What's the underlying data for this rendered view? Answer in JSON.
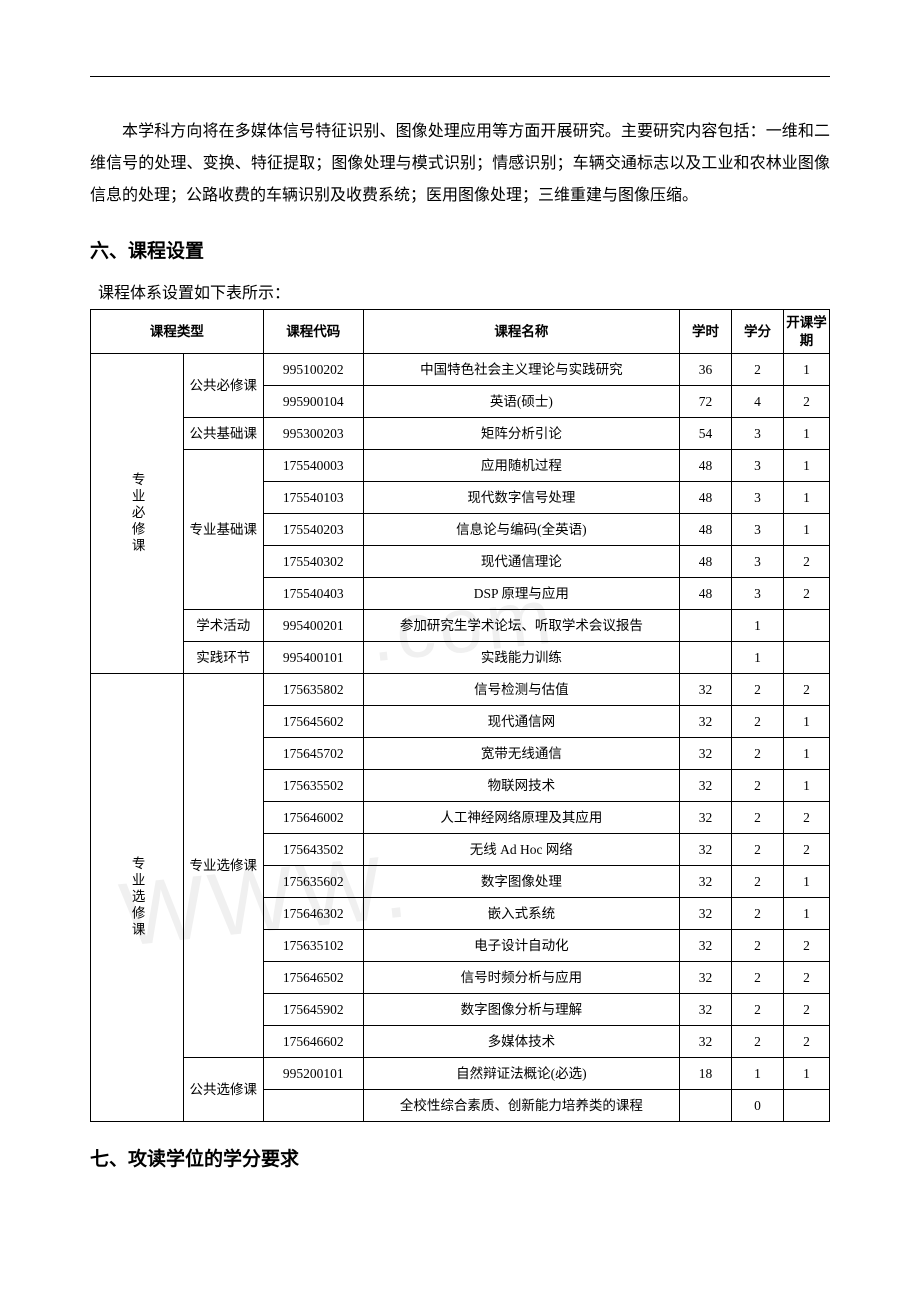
{
  "intro_paragraph": "本学科方向将在多媒体信号特征识别、图像处理应用等方面开展研究。主要研究内容包括：一维和二维信号的处理、变换、特征提取；图像处理与模式识别；情感识别；车辆交通标志以及工业和农林业图像信息的处理；公路收费的车辆识别及收费系统；医用图像处理；三维重建与图像压缩。",
  "section6_title": "六、课程设置",
  "table_intro": "课程体系设置如下表所示：",
  "headers": {
    "type": "课程类型",
    "code": "课程代码",
    "name": "课程名称",
    "hours": "学时",
    "credits": "学分",
    "term": "开课学期"
  },
  "group1_label": "专业必修课",
  "group2_label": "专业选修课",
  "cat_public_required": "公共必修课",
  "cat_public_basic": "公共基础课",
  "cat_major_basic": "专业基础课",
  "cat_academic": "学术活动",
  "cat_practice": "实践环节",
  "cat_major_elective": "专业选修课",
  "cat_public_elective": "公共选修课",
  "rows": {
    "r1": {
      "code": "995100202",
      "name": "中国特色社会主义理论与实践研究",
      "hours": "36",
      "credits": "2",
      "term": "1"
    },
    "r2": {
      "code": "995900104",
      "name": "英语(硕士)",
      "hours": "72",
      "credits": "4",
      "term": "2"
    },
    "r3": {
      "code": "995300203",
      "name": "矩阵分析引论",
      "hours": "54",
      "credits": "3",
      "term": "1"
    },
    "r4": {
      "code": "175540003",
      "name": "应用随机过程",
      "hours": "48",
      "credits": "3",
      "term": "1"
    },
    "r5": {
      "code": "175540103",
      "name": "现代数字信号处理",
      "hours": "48",
      "credits": "3",
      "term": "1"
    },
    "r6": {
      "code": "175540203",
      "name": "信息论与编码(全英语)",
      "hours": "48",
      "credits": "3",
      "term": "1"
    },
    "r7": {
      "code": "175540302",
      "name": "现代通信理论",
      "hours": "48",
      "credits": "3",
      "term": "2"
    },
    "r8": {
      "code": "175540403",
      "name": "DSP 原理与应用",
      "hours": "48",
      "credits": "3",
      "term": "2"
    },
    "r9": {
      "code": "995400201",
      "name": "参加研究生学术论坛、听取学术会议报告",
      "hours": "",
      "credits": "1",
      "term": ""
    },
    "r10": {
      "code": "995400101",
      "name": "实践能力训练",
      "hours": "",
      "credits": "1",
      "term": ""
    },
    "r11": {
      "code": "175635802",
      "name": "信号检测与估值",
      "hours": "32",
      "credits": "2",
      "term": "2"
    },
    "r12": {
      "code": "175645602",
      "name": "现代通信网",
      "hours": "32",
      "credits": "2",
      "term": "1"
    },
    "r13": {
      "code": "175645702",
      "name": "宽带无线通信",
      "hours": "32",
      "credits": "2",
      "term": "1"
    },
    "r14": {
      "code": "175635502",
      "name": "物联网技术",
      "hours": "32",
      "credits": "2",
      "term": "1"
    },
    "r15": {
      "code": "175646002",
      "name": "人工神经网络原理及其应用",
      "hours": "32",
      "credits": "2",
      "term": "2"
    },
    "r16": {
      "code": "175643502",
      "name": "无线 Ad Hoc 网络",
      "hours": "32",
      "credits": "2",
      "term": "2"
    },
    "r17": {
      "code": "175635602",
      "name": "数字图像处理",
      "hours": "32",
      "credits": "2",
      "term": "1"
    },
    "r18": {
      "code": "175646302",
      "name": "嵌入式系统",
      "hours": "32",
      "credits": "2",
      "term": "1"
    },
    "r19": {
      "code": "175635102",
      "name": "电子设计自动化",
      "hours": "32",
      "credits": "2",
      "term": "2"
    },
    "r20": {
      "code": "175646502",
      "name": "信号时频分析与应用",
      "hours": "32",
      "credits": "2",
      "term": "2"
    },
    "r21": {
      "code": "175645902",
      "name": "数字图像分析与理解",
      "hours": "32",
      "credits": "2",
      "term": "2"
    },
    "r22": {
      "code": "175646602",
      "name": "多媒体技术",
      "hours": "32",
      "credits": "2",
      "term": "2"
    },
    "r23": {
      "code": "995200101",
      "name": "自然辩证法概论(必选)",
      "hours": "18",
      "credits": "1",
      "term": "1"
    },
    "r24": {
      "code": "",
      "name": "全校性综合素质、创新能力培养类的课程",
      "hours": "",
      "credits": "0",
      "term": ""
    }
  },
  "section7_title": "七、攻读学位的学分要求",
  "watermark_text1": ".com",
  "watermark_text2": "WWW."
}
